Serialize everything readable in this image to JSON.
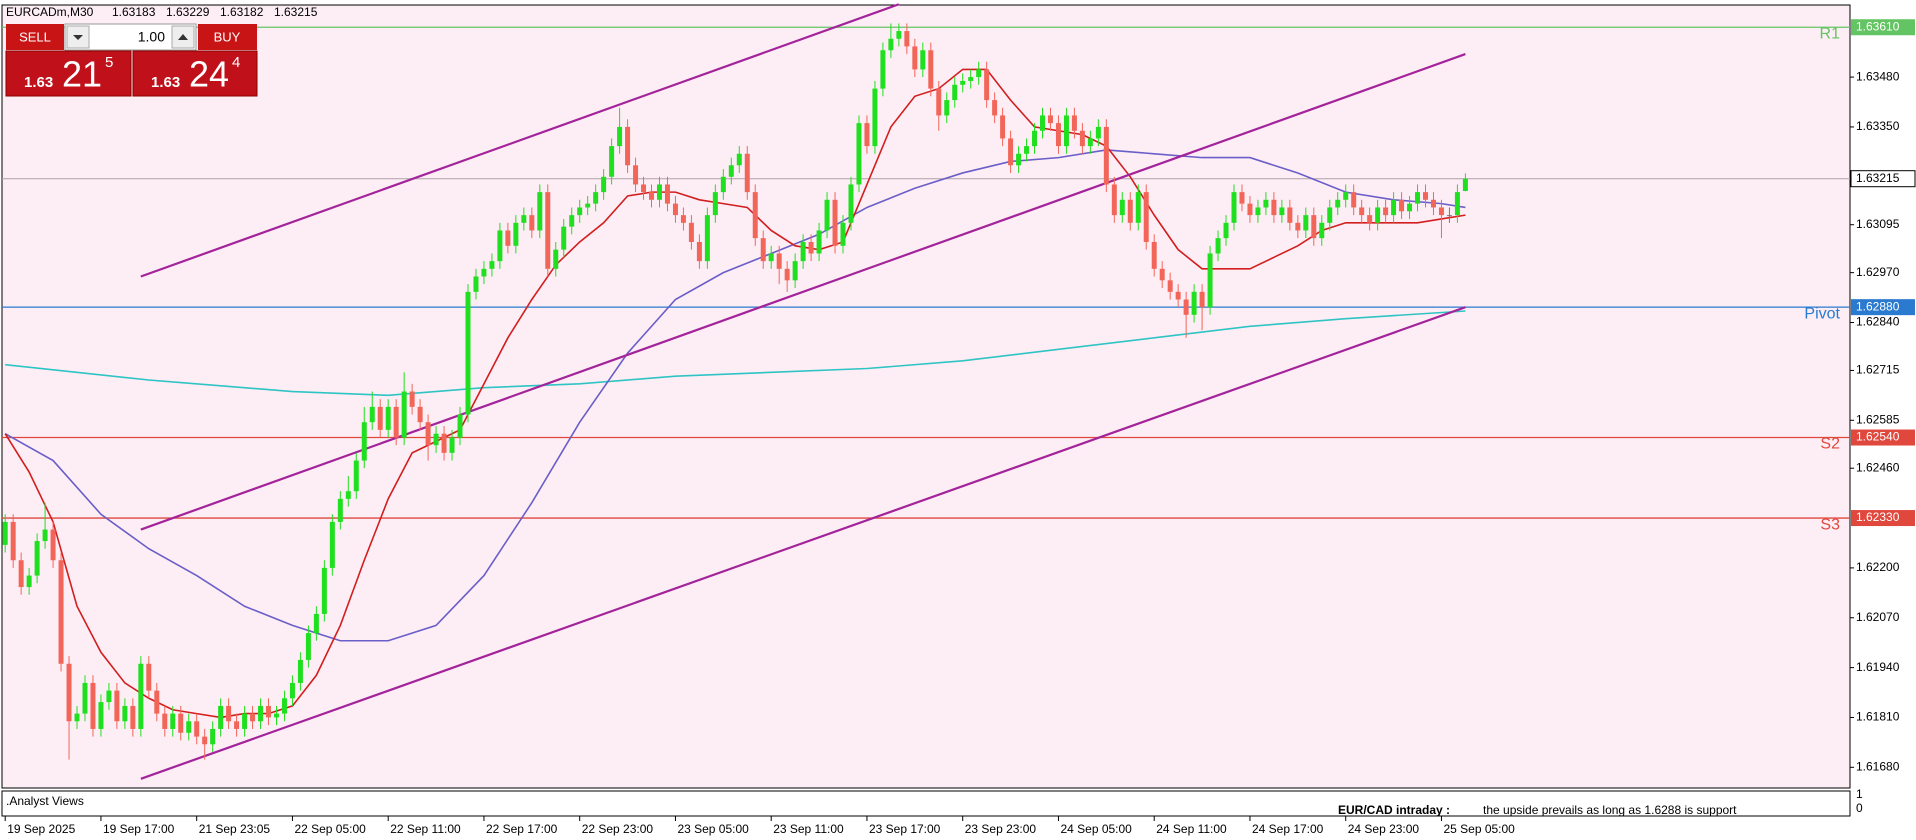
{
  "chart_data": {
    "type": "candlestick",
    "title": "EURCADm,M30",
    "trade_panel": {
      "sell": "SELL",
      "buy": "BUY",
      "lot": "1.00",
      "bid": {
        "big": "1.63",
        "pips": "21",
        "fraction": "5"
      },
      "ask": {
        "big": "1.63",
        "pips": "24",
        "fraction": "4"
      }
    },
    "up_color": "#1fe01f",
    "down_color": "#f2665a",
    "xlim": [
      -0.4,
      231.2
    ],
    "ylim": [
      1.61626,
      1.63668
    ],
    "xticks": [
      {
        "value": 0,
        "label": "19 Sep 2025"
      },
      {
        "value": 12,
        "label": "19 Sep 17:00"
      },
      {
        "value": 24,
        "label": "21 Sep 23:05"
      },
      {
        "value": 36,
        "label": "22 Sep 05:00"
      },
      {
        "value": 48,
        "label": "22 Sep 11:00"
      },
      {
        "value": 60,
        "label": "22 Sep 17:00"
      },
      {
        "value": 72,
        "label": "22 Sep 23:00"
      },
      {
        "value": 84,
        "label": "23 Sep 05:00"
      },
      {
        "value": 96,
        "label": "23 Sep 11:00"
      },
      {
        "value": 108,
        "label": "23 Sep 17:00"
      },
      {
        "value": 120,
        "label": "23 Sep 23:00"
      },
      {
        "value": 132,
        "label": "24 Sep 05:00"
      },
      {
        "value": 144,
        "label": "24 Sep 11:00"
      },
      {
        "value": 156,
        "label": "24 Sep 17:00"
      },
      {
        "value": 168,
        "label": "24 Sep 23:00"
      },
      {
        "value": 180,
        "label": "25 Sep 05:00"
      }
    ],
    "yticks": [
      {
        "value": 1.6348,
        "label": "1.63480"
      },
      {
        "value": 1.6335,
        "label": "1.63350"
      },
      {
        "value": 1.63095,
        "label": "1.63095"
      },
      {
        "value": 1.6297,
        "label": "1.62970"
      },
      {
        "value": 1.6284,
        "label": "1.62840"
      },
      {
        "value": 1.62715,
        "label": "1.62715"
      },
      {
        "value": 1.62585,
        "label": "1.62585"
      },
      {
        "value": 1.6246,
        "label": "1.62460"
      },
      {
        "value": 1.622,
        "label": "1.62200"
      },
      {
        "value": 1.6207,
        "label": "1.62070"
      },
      {
        "value": 1.6194,
        "label": "1.61940"
      },
      {
        "value": 1.6181,
        "label": "1.61810"
      },
      {
        "value": 1.6168,
        "label": "1.61680"
      }
    ],
    "levels": [
      {
        "name": "R1",
        "value": 1.6361,
        "label": "1.63610",
        "color": "#63c463"
      },
      {
        "name": "Pivot",
        "value": 1.6288,
        "label": "1.62880",
        "color": "#2a7ad0"
      },
      {
        "name": "S2",
        "value": 1.6254,
        "label": "1.62540",
        "color": "#e0483e"
      },
      {
        "name": "S3",
        "value": 1.6233,
        "label": "1.62330",
        "color": "#e0483e"
      }
    ],
    "open": [
      1.6226,
      1.6232,
      1.6222,
      1.6215,
      1.6218,
      1.6227,
      1.623,
      1.6222,
      1.6195,
      1.618,
      1.6182,
      1.619,
      1.6178,
      1.6185,
      1.6188,
      1.618,
      1.6184,
      1.6178,
      1.6195,
      1.6188,
      1.6182,
      1.6178,
      1.6182,
      1.6177,
      1.618,
      1.6176,
      1.6174,
      1.6178,
      1.6184,
      1.618,
      1.6178,
      1.6182,
      1.618,
      1.6184,
      1.6181,
      1.6182,
      1.6186,
      1.619,
      1.6196,
      1.6203,
      1.6208,
      1.622,
      1.6232,
      1.6238,
      1.624,
      1.6248,
      1.6258,
      1.6262,
      1.6256,
      1.6262,
      1.6254,
      1.6266,
      1.6262,
      1.6258,
      1.6252,
      1.6255,
      1.625,
      1.6254,
      1.626,
      1.6292,
      1.6296,
      1.6298,
      1.63,
      1.6308,
      1.6304,
      1.631,
      1.6312,
      1.6308,
      1.6318,
      1.6298,
      1.6303,
      1.6309,
      1.6312,
      1.6314,
      1.6315,
      1.6318,
      1.6322,
      1.633,
      1.6335,
      1.6325,
      1.632,
      1.6318,
      1.6316,
      1.632,
      1.6315,
      1.6312,
      1.631,
      1.6305,
      1.63,
      1.6312,
      1.6318,
      1.6322,
      1.6325,
      1.6328,
      1.6318,
      1.6306,
      1.63,
      1.6302,
      1.6298,
      1.6295,
      1.63,
      1.6305,
      1.6302,
      1.6308,
      1.6316,
      1.6304,
      1.631,
      1.632,
      1.6336,
      1.633,
      1.6345,
      1.6355,
      1.6358,
      1.636,
      1.6356,
      1.635,
      1.6355,
      1.6345,
      1.6338,
      1.6342,
      1.6346,
      1.6347,
      1.6348,
      1.635,
      1.6342,
      1.6338,
      1.6332,
      1.6325,
      1.6328,
      1.633,
      1.6334,
      1.6338,
      1.6336,
      1.633,
      1.6338,
      1.6334,
      1.633,
      1.6332,
      1.6335,
      1.632,
      1.6312,
      1.6316,
      1.631,
      1.6318,
      1.6305,
      1.6298,
      1.6295,
      1.6292,
      1.629,
      1.6286,
      1.6292,
      1.6288,
      1.6302,
      1.6306,
      1.631,
      1.6318,
      1.6315,
      1.6312,
      1.6314,
      1.6316,
      1.6312,
      1.6314,
      1.631,
      1.6308,
      1.6312,
      1.6306,
      1.631,
      1.6314,
      1.6316,
      1.6318,
      1.6314,
      1.6312,
      1.631,
      1.6314,
      1.6312,
      1.6316,
      1.6313,
      1.6315,
      1.6318,
      1.6316,
      1.6314,
      1.6312,
      1.6312,
      1.63183
    ],
    "high": [
      1.6234,
      1.6234,
      1.6224,
      1.622,
      1.6229,
      1.6237,
      1.6232,
      1.6224,
      1.6197,
      1.6184,
      1.6192,
      1.6192,
      1.6187,
      1.619,
      1.619,
      1.6186,
      1.6186,
      1.6197,
      1.6197,
      1.619,
      1.6184,
      1.6184,
      1.6184,
      1.6182,
      1.6182,
      1.6178,
      1.618,
      1.6186,
      1.6186,
      1.6182,
      1.6184,
      1.6184,
      1.6186,
      1.6186,
      1.6184,
      1.6188,
      1.6192,
      1.6198,
      1.6205,
      1.621,
      1.6222,
      1.6234,
      1.624,
      1.6244,
      1.625,
      1.6262,
      1.6266,
      1.6264,
      1.6264,
      1.6264,
      1.6271,
      1.6268,
      1.6264,
      1.626,
      1.6257,
      1.6257,
      1.6256,
      1.6262,
      1.6294,
      1.6298,
      1.63,
      1.6302,
      1.631,
      1.631,
      1.6312,
      1.6314,
      1.6314,
      1.632,
      1.632,
      1.6305,
      1.6311,
      1.6314,
      1.6316,
      1.6317,
      1.632,
      1.6324,
      1.6332,
      1.634,
      1.6337,
      1.6327,
      1.6322,
      1.632,
      1.6322,
      1.6322,
      1.6317,
      1.6314,
      1.6312,
      1.6307,
      1.6314,
      1.632,
      1.6324,
      1.6327,
      1.633,
      1.633,
      1.632,
      1.6308,
      1.6304,
      1.6304,
      1.63,
      1.6302,
      1.6307,
      1.6307,
      1.631,
      1.6318,
      1.6318,
      1.6312,
      1.6322,
      1.6338,
      1.6338,
      1.6347,
      1.6357,
      1.6362,
      1.6362,
      1.6362,
      1.6358,
      1.6357,
      1.6357,
      1.6347,
      1.6344,
      1.6348,
      1.6349,
      1.635,
      1.6352,
      1.6352,
      1.6344,
      1.634,
      1.6334,
      1.633,
      1.6332,
      1.6336,
      1.634,
      1.634,
      1.6338,
      1.634,
      1.634,
      1.6336,
      1.6334,
      1.6337,
      1.6337,
      1.6322,
      1.6318,
      1.6318,
      1.632,
      1.632,
      1.6307,
      1.63,
      1.6297,
      1.6294,
      1.6292,
      1.6294,
      1.6294,
      1.6304,
      1.6308,
      1.6312,
      1.632,
      1.632,
      1.6317,
      1.6316,
      1.6318,
      1.6318,
      1.6316,
      1.6316,
      1.6312,
      1.6314,
      1.6314,
      1.6312,
      1.6316,
      1.6318,
      1.632,
      1.632,
      1.6316,
      1.6314,
      1.6316,
      1.6316,
      1.6318,
      1.6318,
      1.6317,
      1.632,
      1.632,
      1.6318,
      1.6316,
      1.6314,
      1.632,
      1.63229
    ],
    "low": [
      1.6224,
      1.622,
      1.6213,
      1.6213,
      1.6216,
      1.6225,
      1.622,
      1.6193,
      1.617,
      1.6178,
      1.618,
      1.6176,
      1.6176,
      1.6183,
      1.6178,
      1.6178,
      1.6176,
      1.6176,
      1.6186,
      1.618,
      1.6176,
      1.6176,
      1.6175,
      1.6175,
      1.6174,
      1.617,
      1.6172,
      1.6176,
      1.6178,
      1.6176,
      1.6176,
      1.6178,
      1.6178,
      1.6179,
      1.6179,
      1.618,
      1.6184,
      1.6188,
      1.6194,
      1.6201,
      1.6206,
      1.6218,
      1.623,
      1.6236,
      1.6238,
      1.6246,
      1.6256,
      1.6254,
      1.6254,
      1.6252,
      1.6252,
      1.626,
      1.6256,
      1.6248,
      1.625,
      1.6248,
      1.6248,
      1.6252,
      1.6258,
      1.629,
      1.6294,
      1.6296,
      1.6298,
      1.6302,
      1.6302,
      1.6308,
      1.6306,
      1.6306,
      1.6296,
      1.6296,
      1.6301,
      1.6307,
      1.631,
      1.6312,
      1.6313,
      1.6316,
      1.632,
      1.6328,
      1.6323,
      1.6318,
      1.6316,
      1.6314,
      1.6314,
      1.6313,
      1.631,
      1.6308,
      1.6303,
      1.6298,
      1.6298,
      1.631,
      1.6316,
      1.632,
      1.6323,
      1.6316,
      1.6304,
      1.6298,
      1.6298,
      1.6294,
      1.6292,
      1.6293,
      1.6298,
      1.63,
      1.63,
      1.6306,
      1.6302,
      1.6302,
      1.6308,
      1.6318,
      1.6328,
      1.6328,
      1.6343,
      1.6353,
      1.6356,
      1.6354,
      1.6348,
      1.6348,
      1.6343,
      1.6334,
      1.6336,
      1.634,
      1.6344,
      1.6345,
      1.6346,
      1.634,
      1.6336,
      1.633,
      1.6323,
      1.6323,
      1.6326,
      1.6328,
      1.6332,
      1.6334,
      1.6328,
      1.6328,
      1.6332,
      1.6328,
      1.6328,
      1.633,
      1.6318,
      1.631,
      1.631,
      1.6308,
      1.6308,
      1.6303,
      1.6296,
      1.6293,
      1.629,
      1.6288,
      1.628,
      1.6284,
      1.6282,
      1.6286,
      1.63,
      1.6304,
      1.6308,
      1.6313,
      1.631,
      1.631,
      1.6312,
      1.631,
      1.631,
      1.6308,
      1.6306,
      1.6306,
      1.6304,
      1.6304,
      1.6308,
      1.6312,
      1.6314,
      1.6312,
      1.631,
      1.6308,
      1.6308,
      1.631,
      1.631,
      1.6311,
      1.6311,
      1.6313,
      1.6314,
      1.6312,
      1.6306,
      1.631,
      1.631,
      1.63182
    ],
    "close": [
      1.6232,
      1.6222,
      1.6215,
      1.6218,
      1.6227,
      1.623,
      1.6222,
      1.6195,
      1.618,
      1.6182,
      1.619,
      1.6178,
      1.6185,
      1.6188,
      1.618,
      1.6184,
      1.6178,
      1.6195,
      1.6188,
      1.6182,
      1.6178,
      1.6182,
      1.6177,
      1.618,
      1.6176,
      1.6174,
      1.6178,
      1.6184,
      1.618,
      1.6178,
      1.6182,
      1.618,
      1.6184,
      1.6181,
      1.6182,
      1.6186,
      1.619,
      1.6196,
      1.6203,
      1.6208,
      1.622,
      1.6232,
      1.6238,
      1.624,
      1.6248,
      1.6258,
      1.6262,
      1.6256,
      1.6262,
      1.6254,
      1.6266,
      1.6262,
      1.6258,
      1.6252,
      1.6255,
      1.625,
      1.6254,
      1.626,
      1.6292,
      1.6296,
      1.6298,
      1.63,
      1.6308,
      1.6304,
      1.631,
      1.6312,
      1.6308,
      1.6318,
      1.6298,
      1.6303,
      1.6309,
      1.6312,
      1.6314,
      1.6315,
      1.6318,
      1.6322,
      1.633,
      1.6335,
      1.6325,
      1.632,
      1.6318,
      1.6316,
      1.632,
      1.6315,
      1.6312,
      1.631,
      1.6305,
      1.63,
      1.6312,
      1.6318,
      1.6322,
      1.6325,
      1.6328,
      1.6318,
      1.6306,
      1.63,
      1.6302,
      1.6298,
      1.6295,
      1.63,
      1.6305,
      1.6302,
      1.6308,
      1.6316,
      1.6304,
      1.631,
      1.632,
      1.6336,
      1.633,
      1.6345,
      1.6355,
      1.6358,
      1.636,
      1.6356,
      1.635,
      1.6355,
      1.6345,
      1.6338,
      1.6342,
      1.6346,
      1.6347,
      1.6348,
      1.635,
      1.6342,
      1.6338,
      1.6332,
      1.6325,
      1.6328,
      1.633,
      1.6334,
      1.6338,
      1.6336,
      1.633,
      1.6338,
      1.6334,
      1.633,
      1.6332,
      1.6335,
      1.632,
      1.6312,
      1.6316,
      1.631,
      1.6318,
      1.6305,
      1.6298,
      1.6295,
      1.6292,
      1.629,
      1.6286,
      1.6292,
      1.6288,
      1.6302,
      1.6306,
      1.631,
      1.6318,
      1.6315,
      1.6312,
      1.6314,
      1.6316,
      1.6312,
      1.6314,
      1.631,
      1.6308,
      1.6312,
      1.6306,
      1.631,
      1.6314,
      1.6316,
      1.6318,
      1.6314,
      1.6312,
      1.631,
      1.6314,
      1.6312,
      1.6316,
      1.6313,
      1.6315,
      1.6318,
      1.6316,
      1.6314,
      1.6312,
      1.6312,
      1.6318,
      1.63215
    ],
    "series": [
      {
        "color": "#2fc4c4",
        "x": [
          0,
          18,
          36,
          48,
          60,
          72,
          84,
          96,
          108,
          120,
          132,
          144,
          156,
          168,
          183
        ],
        "values": [
          1.6273,
          1.6269,
          1.6266,
          1.6265,
          1.6267,
          1.6268,
          1.627,
          1.6271,
          1.6272,
          1.6274,
          1.6277,
          1.628,
          1.6283,
          1.6285,
          1.6287
        ]
      },
      {
        "color": "#6a5ec8",
        "x": [
          0,
          6,
          12,
          18,
          24,
          30,
          36,
          42,
          48,
          54,
          60,
          66,
          72,
          78,
          84,
          90,
          96,
          102,
          108,
          114,
          120,
          126,
          132,
          138,
          144,
          150,
          156,
          162,
          168,
          174,
          180,
          183
        ],
        "values": [
          1.6255,
          1.6248,
          1.6234,
          1.6225,
          1.6218,
          1.621,
          1.6205,
          1.6201,
          1.6201,
          1.6205,
          1.6218,
          1.6237,
          1.6258,
          1.6276,
          1.629,
          1.6297,
          1.6302,
          1.6307,
          1.6314,
          1.6319,
          1.6323,
          1.6326,
          1.6327,
          1.6329,
          1.6328,
          1.6327,
          1.6327,
          1.6323,
          1.6318,
          1.6316,
          1.6315,
          1.6314
        ]
      },
      {
        "color": "#d21e1e",
        "x": [
          0,
          3,
          6,
          9,
          12,
          15,
          18,
          21,
          24,
          27,
          30,
          33,
          36,
          39,
          42,
          45,
          48,
          51,
          54,
          57,
          60,
          63,
          66,
          69,
          72,
          75,
          78,
          81,
          84,
          87,
          90,
          93,
          96,
          99,
          102,
          105,
          108,
          111,
          114,
          117,
          120,
          123,
          126,
          129,
          132,
          135,
          138,
          141,
          144,
          147,
          150,
          153,
          156,
          159,
          162,
          165,
          168,
          171,
          174,
          177,
          180,
          183
        ],
        "values": [
          1.6255,
          1.6245,
          1.6232,
          1.621,
          1.6198,
          1.619,
          1.6186,
          1.6183,
          1.6182,
          1.6181,
          1.6182,
          1.6182,
          1.6184,
          1.6192,
          1.6205,
          1.6222,
          1.6238,
          1.625,
          1.6253,
          1.6256,
          1.6268,
          1.628,
          1.629,
          1.6299,
          1.6305,
          1.631,
          1.6317,
          1.6318,
          1.6318,
          1.6316,
          1.6315,
          1.6314,
          1.6308,
          1.6304,
          1.6303,
          1.6305,
          1.632,
          1.6335,
          1.6343,
          1.6345,
          1.635,
          1.635,
          1.6342,
          1.6335,
          1.6334,
          1.6333,
          1.633,
          1.6322,
          1.6312,
          1.6303,
          1.6298,
          1.6298,
          1.6298,
          1.6301,
          1.6304,
          1.6308,
          1.631,
          1.631,
          1.631,
          1.631,
          1.6311,
          1.6312
        ]
      }
    ],
    "trendlines": [
      {
        "color": "#a3239a",
        "x": [
          17,
          112
        ],
        "values": [
          1.6296,
          1.6367
        ]
      },
      {
        "color": "#a3239a",
        "x": [
          17,
          183
        ],
        "values": [
          1.623,
          1.6354
        ]
      },
      {
        "color": "#a3239a",
        "x": [
          17,
          183
        ],
        "values": [
          1.6165,
          1.6288
        ]
      }
    ],
    "subwindow": {
      "label": ".Analyst Views",
      "yticks": [
        1,
        0
      ],
      "title": "EUR/CAD intraday :",
      "text": "the upside prevails as long as 1.6288 is support"
    }
  }
}
